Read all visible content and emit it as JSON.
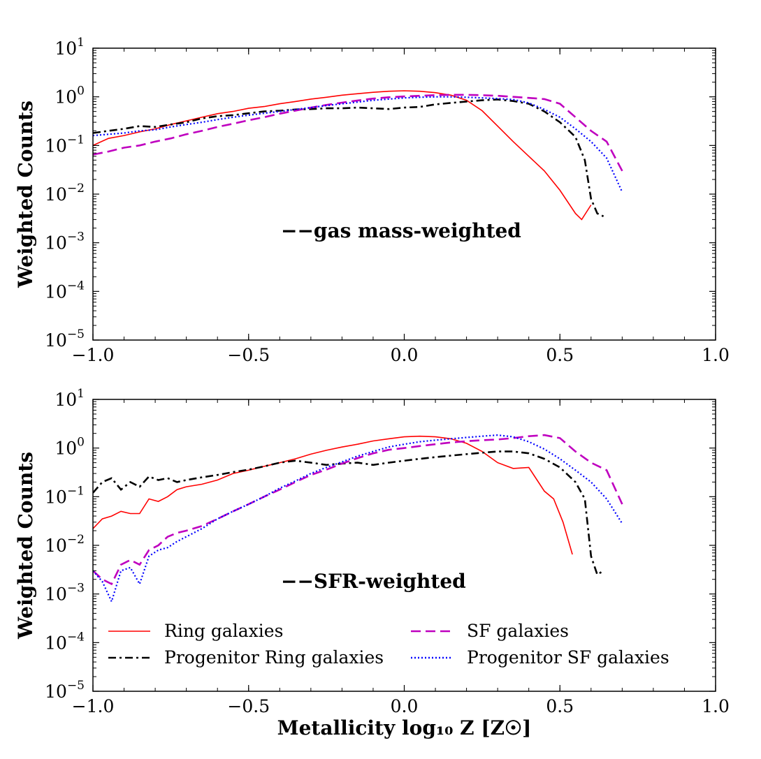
{
  "chart_data": [
    {
      "type": "line",
      "panel": "top",
      "annotation": "−−gas mass-weighted",
      "ylabel": "Weighted Counts",
      "xlabel": "",
      "xlim": [
        -1.0,
        1.0
      ],
      "ylim_log10": [
        -5,
        1
      ],
      "x_ticks": [
        "−1.0",
        "−0.5",
        "0.0",
        "0.5",
        "1.0"
      ],
      "y_ticks": [
        {
          "base": "10",
          "exp": "1"
        },
        {
          "base": "10",
          "exp": "0"
        },
        {
          "base": "10",
          "exp": "−1"
        },
        {
          "base": "10",
          "exp": "−2"
        },
        {
          "base": "10",
          "exp": "−3"
        },
        {
          "base": "10",
          "exp": "−4"
        },
        {
          "base": "10",
          "exp": "−5"
        }
      ],
      "series": [
        {
          "name": "Ring galaxies",
          "color": "#ff0000",
          "style": "solid",
          "x": [
            -1.0,
            -0.95,
            -0.9,
            -0.85,
            -0.8,
            -0.75,
            -0.7,
            -0.65,
            -0.6,
            -0.55,
            -0.5,
            -0.45,
            -0.4,
            -0.35,
            -0.3,
            -0.25,
            -0.2,
            -0.15,
            -0.1,
            -0.05,
            0.0,
            0.05,
            0.1,
            0.15,
            0.2,
            0.25,
            0.3,
            0.35,
            0.4,
            0.45,
            0.5,
            0.55,
            0.57,
            0.6
          ],
          "y": [
            0.1,
            0.14,
            0.16,
            0.19,
            0.22,
            0.27,
            0.32,
            0.38,
            0.45,
            0.5,
            0.58,
            0.63,
            0.72,
            0.8,
            0.9,
            0.98,
            1.08,
            1.16,
            1.24,
            1.3,
            1.33,
            1.3,
            1.22,
            1.08,
            0.85,
            0.52,
            0.25,
            0.12,
            0.06,
            0.03,
            0.012,
            0.004,
            0.003,
            0.006
          ]
        },
        {
          "name": "Progenitor Ring galaxies",
          "color": "#000000",
          "style": "dashdot",
          "x": [
            -1.0,
            -0.95,
            -0.9,
            -0.85,
            -0.8,
            -0.75,
            -0.7,
            -0.65,
            -0.6,
            -0.55,
            -0.5,
            -0.45,
            -0.4,
            -0.35,
            -0.3,
            -0.25,
            -0.2,
            -0.15,
            -0.1,
            -0.05,
            0.0,
            0.05,
            0.1,
            0.15,
            0.2,
            0.25,
            0.3,
            0.35,
            0.4,
            0.45,
            0.5,
            0.55,
            0.58,
            0.6,
            0.62,
            0.64
          ],
          "y": [
            0.18,
            0.2,
            0.22,
            0.25,
            0.24,
            0.27,
            0.3,
            0.36,
            0.4,
            0.42,
            0.46,
            0.5,
            0.52,
            0.55,
            0.56,
            0.58,
            0.58,
            0.6,
            0.58,
            0.56,
            0.6,
            0.62,
            0.7,
            0.75,
            0.8,
            0.85,
            0.88,
            0.82,
            0.72,
            0.5,
            0.3,
            0.15,
            0.05,
            0.008,
            0.004,
            0.0035
          ]
        },
        {
          "name": "SF galaxies",
          "color": "#bf00bf",
          "style": "dashed",
          "x": [
            -1.0,
            -0.95,
            -0.9,
            -0.85,
            -0.8,
            -0.75,
            -0.7,
            -0.65,
            -0.6,
            -0.55,
            -0.5,
            -0.45,
            -0.4,
            -0.35,
            -0.3,
            -0.25,
            -0.2,
            -0.15,
            -0.1,
            -0.05,
            0.0,
            0.05,
            0.1,
            0.15,
            0.2,
            0.25,
            0.3,
            0.35,
            0.4,
            0.45,
            0.5,
            0.55,
            0.6,
            0.65,
            0.7
          ],
          "y": [
            0.065,
            0.075,
            0.09,
            0.1,
            0.12,
            0.14,
            0.17,
            0.2,
            0.24,
            0.28,
            0.33,
            0.38,
            0.45,
            0.52,
            0.6,
            0.68,
            0.76,
            0.84,
            0.92,
            0.98,
            1.02,
            1.05,
            1.08,
            1.1,
            1.1,
            1.08,
            1.05,
            1.0,
            0.95,
            0.9,
            0.72,
            0.38,
            0.2,
            0.12,
            0.03
          ]
        },
        {
          "name": "Progenitor SF galaxies",
          "color": "#0000ff",
          "style": "dotted",
          "x": [
            -1.0,
            -0.95,
            -0.9,
            -0.85,
            -0.8,
            -0.75,
            -0.7,
            -0.65,
            -0.6,
            -0.55,
            -0.5,
            -0.45,
            -0.4,
            -0.35,
            -0.3,
            -0.25,
            -0.2,
            -0.15,
            -0.1,
            -0.05,
            0.0,
            0.05,
            0.1,
            0.15,
            0.2,
            0.25,
            0.3,
            0.35,
            0.4,
            0.45,
            0.5,
            0.55,
            0.6,
            0.65,
            0.7
          ],
          "y": [
            0.16,
            0.17,
            0.18,
            0.2,
            0.21,
            0.24,
            0.27,
            0.3,
            0.34,
            0.38,
            0.42,
            0.46,
            0.5,
            0.55,
            0.6,
            0.66,
            0.72,
            0.78,
            0.85,
            0.9,
            0.95,
            0.98,
            1.0,
            1.0,
            0.98,
            0.95,
            0.92,
            0.88,
            0.75,
            0.55,
            0.38,
            0.22,
            0.12,
            0.055,
            0.011
          ]
        }
      ]
    },
    {
      "type": "line",
      "panel": "bottom",
      "annotation": "−−SFR-weighted",
      "ylabel": "Weighted Counts",
      "xlabel": "Metallicity log₁₀ Z [Z☉]",
      "xlim": [
        -1.0,
        1.0
      ],
      "ylim_log10": [
        -5,
        1
      ],
      "x_ticks": [
        "−1.0",
        "−0.5",
        "0.0",
        "0.5",
        "1.0"
      ],
      "y_ticks": [
        {
          "base": "10",
          "exp": "1"
        },
        {
          "base": "10",
          "exp": "0"
        },
        {
          "base": "10",
          "exp": "−1"
        },
        {
          "base": "10",
          "exp": "−2"
        },
        {
          "base": "10",
          "exp": "−3"
        },
        {
          "base": "10",
          "exp": "−4"
        },
        {
          "base": "10",
          "exp": "−5"
        }
      ],
      "series": [
        {
          "name": "Ring galaxies",
          "color": "#ff0000",
          "style": "solid",
          "x": [
            -1.0,
            -0.97,
            -0.94,
            -0.91,
            -0.88,
            -0.85,
            -0.82,
            -0.79,
            -0.76,
            -0.73,
            -0.7,
            -0.65,
            -0.6,
            -0.55,
            -0.5,
            -0.45,
            -0.4,
            -0.35,
            -0.3,
            -0.25,
            -0.2,
            -0.15,
            -0.1,
            -0.05,
            0.0,
            0.05,
            0.1,
            0.15,
            0.2,
            0.25,
            0.3,
            0.35,
            0.4,
            0.45,
            0.48,
            0.51,
            0.54
          ],
          "y": [
            0.022,
            0.035,
            0.04,
            0.05,
            0.045,
            0.045,
            0.09,
            0.08,
            0.1,
            0.14,
            0.16,
            0.18,
            0.22,
            0.3,
            0.35,
            0.42,
            0.5,
            0.6,
            0.75,
            0.9,
            1.05,
            1.2,
            1.4,
            1.55,
            1.7,
            1.75,
            1.7,
            1.55,
            1.25,
            0.85,
            0.5,
            0.38,
            0.4,
            0.13,
            0.09,
            0.03,
            0.0065
          ]
        },
        {
          "name": "Progenitor Ring galaxies",
          "color": "#000000",
          "style": "dashdot",
          "x": [
            -1.0,
            -0.97,
            -0.94,
            -0.91,
            -0.88,
            -0.85,
            -0.82,
            -0.79,
            -0.76,
            -0.73,
            -0.7,
            -0.65,
            -0.6,
            -0.55,
            -0.5,
            -0.45,
            -0.4,
            -0.35,
            -0.3,
            -0.25,
            -0.2,
            -0.15,
            -0.1,
            -0.05,
            0.0,
            0.05,
            0.1,
            0.15,
            0.2,
            0.25,
            0.3,
            0.35,
            0.4,
            0.45,
            0.5,
            0.55,
            0.58,
            0.6,
            0.62,
            0.64
          ],
          "y": [
            0.12,
            0.2,
            0.24,
            0.14,
            0.2,
            0.16,
            0.26,
            0.22,
            0.24,
            0.2,
            0.22,
            0.25,
            0.28,
            0.32,
            0.36,
            0.42,
            0.5,
            0.55,
            0.5,
            0.45,
            0.48,
            0.5,
            0.45,
            0.5,
            0.55,
            0.6,
            0.65,
            0.7,
            0.75,
            0.8,
            0.85,
            0.85,
            0.78,
            0.6,
            0.4,
            0.2,
            0.09,
            0.006,
            0.0025,
            0.003
          ]
        },
        {
          "name": "SF galaxies",
          "color": "#bf00bf",
          "style": "dashed",
          "x": [
            -1.0,
            -0.97,
            -0.94,
            -0.91,
            -0.88,
            -0.85,
            -0.82,
            -0.79,
            -0.76,
            -0.73,
            -0.7,
            -0.65,
            -0.6,
            -0.55,
            -0.5,
            -0.45,
            -0.4,
            -0.35,
            -0.3,
            -0.25,
            -0.2,
            -0.15,
            -0.1,
            -0.05,
            0.0,
            0.05,
            0.1,
            0.15,
            0.2,
            0.25,
            0.3,
            0.35,
            0.4,
            0.45,
            0.5,
            0.55,
            0.6,
            0.65,
            0.7
          ],
          "y": [
            0.003,
            0.002,
            0.0016,
            0.004,
            0.005,
            0.004,
            0.008,
            0.01,
            0.015,
            0.018,
            0.02,
            0.025,
            0.035,
            0.05,
            0.07,
            0.1,
            0.14,
            0.2,
            0.28,
            0.36,
            0.48,
            0.62,
            0.78,
            0.92,
            1.0,
            1.1,
            1.2,
            1.3,
            1.38,
            1.45,
            1.5,
            1.6,
            1.75,
            1.85,
            1.6,
            0.85,
            0.5,
            0.35,
            0.07
          ]
        },
        {
          "name": "Progenitor SF galaxies",
          "color": "#0000ff",
          "style": "dotted",
          "x": [
            -1.0,
            -0.97,
            -0.94,
            -0.91,
            -0.88,
            -0.85,
            -0.82,
            -0.79,
            -0.76,
            -0.73,
            -0.7,
            -0.65,
            -0.6,
            -0.55,
            -0.5,
            -0.45,
            -0.4,
            -0.35,
            -0.3,
            -0.25,
            -0.2,
            -0.15,
            -0.1,
            -0.05,
            0.0,
            0.05,
            0.1,
            0.15,
            0.2,
            0.25,
            0.3,
            0.35,
            0.4,
            0.45,
            0.5,
            0.55,
            0.6,
            0.65,
            0.7
          ],
          "y": [
            0.003,
            0.0018,
            0.0007,
            0.003,
            0.0035,
            0.0016,
            0.006,
            0.008,
            0.009,
            0.012,
            0.015,
            0.022,
            0.035,
            0.05,
            0.07,
            0.1,
            0.15,
            0.21,
            0.3,
            0.4,
            0.52,
            0.68,
            0.85,
            1.05,
            1.2,
            1.35,
            1.45,
            1.55,
            1.65,
            1.75,
            1.85,
            1.7,
            1.35,
            0.95,
            0.6,
            0.35,
            0.2,
            0.09,
            0.028
          ]
        }
      ]
    }
  ],
  "legend": {
    "placement": "lower-left of bottom panel, two columns",
    "entries": [
      {
        "label": "Ring galaxies",
        "color": "#ff0000",
        "style": "solid"
      },
      {
        "label": "SF galaxies",
        "color": "#bf00bf",
        "style": "dashed"
      },
      {
        "label": "Progenitor Ring galaxies",
        "color": "#000000",
        "style": "dashdot"
      },
      {
        "label": "Progenitor SF galaxies",
        "color": "#0000ff",
        "style": "dotted"
      }
    ]
  }
}
